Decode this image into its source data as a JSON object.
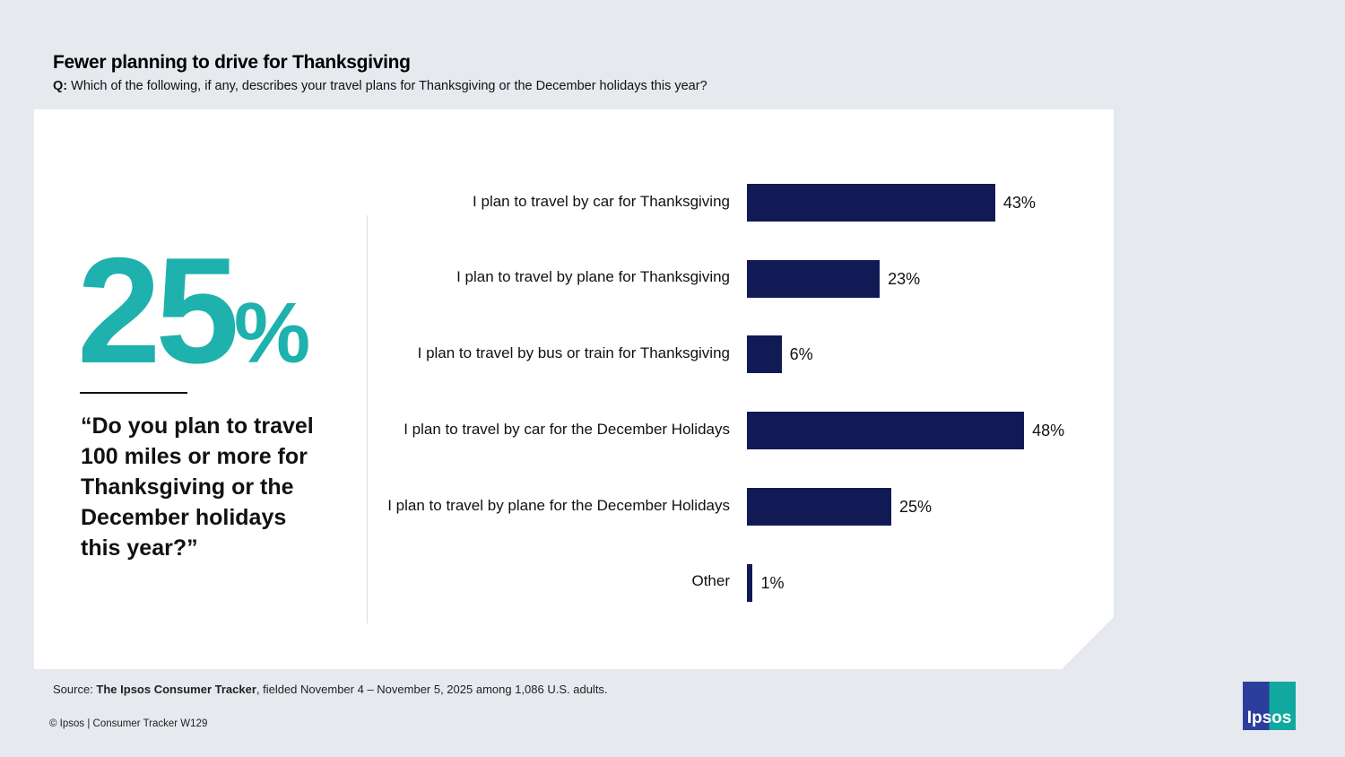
{
  "header": {
    "title": "Fewer planning to drive for Thanksgiving",
    "question_prefix": "Q:",
    "question": "Which of the following, if any, describes your travel plans for Thanksgiving or the December holidays this year?"
  },
  "callout": {
    "number": "25",
    "unit": "%",
    "quote": "“Do you plan to travel 100 miles or more for Thanksgiving or the December holidays this year?”",
    "color": "#1fb1ad"
  },
  "chart_data": {
    "type": "bar",
    "orientation": "horizontal",
    "categories": [
      "I plan to travel by car for Thanksgiving",
      "I plan to travel by plane for Thanksgiving",
      "I plan to travel by bus or train for Thanksgiving",
      "I plan to travel by car for the December Holidays",
      "I plan to travel by plane for the December Holidays",
      "Other"
    ],
    "values": [
      43,
      23,
      6,
      48,
      25,
      1
    ],
    "data_labels": [
      "43%",
      "23%",
      "6%",
      "48%",
      "25%",
      "1%"
    ],
    "xlim": [
      0,
      100
    ],
    "grid": false,
    "bar_color": "#121a55"
  },
  "footer": {
    "source_prefix": "Source: ",
    "source_bold": "The Ipsos Consumer Tracker",
    "source_rest": ", fielded November 4 – November 5, 2025 among 1,086 U.S. adults.",
    "copyright": "© Ipsos | Consumer Tracker W129",
    "logo_text": "Ipsos"
  }
}
